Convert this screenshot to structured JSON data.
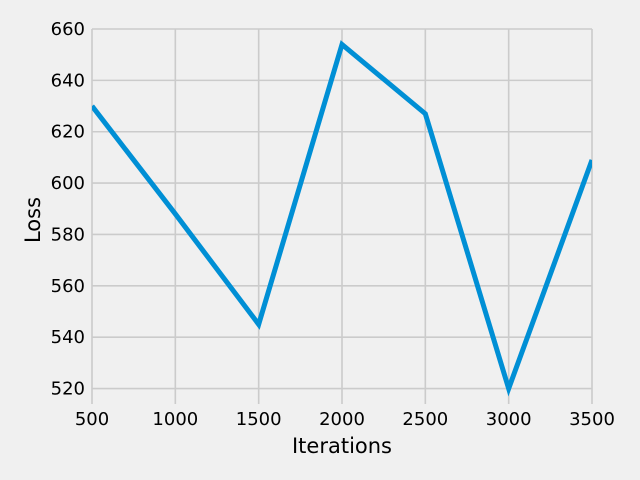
{
  "chart_data": {
    "type": "line",
    "title": "",
    "xlabel": "Iterations",
    "ylabel": "Loss",
    "xlim": [
      500,
      3500
    ],
    "ylim": [
      514,
      660
    ],
    "xticks": [
      500,
      1000,
      1500,
      2000,
      2500,
      3000,
      3500
    ],
    "yticks": [
      520,
      540,
      560,
      580,
      600,
      620,
      640,
      660
    ],
    "grid": true,
    "series": [
      {
        "color": "#008fd5",
        "x": [
          500,
          1000,
          1500,
          2000,
          2500,
          3000,
          3500
        ],
        "y": [
          630,
          588,
          545,
          654,
          627,
          520,
          609
        ]
      }
    ]
  }
}
